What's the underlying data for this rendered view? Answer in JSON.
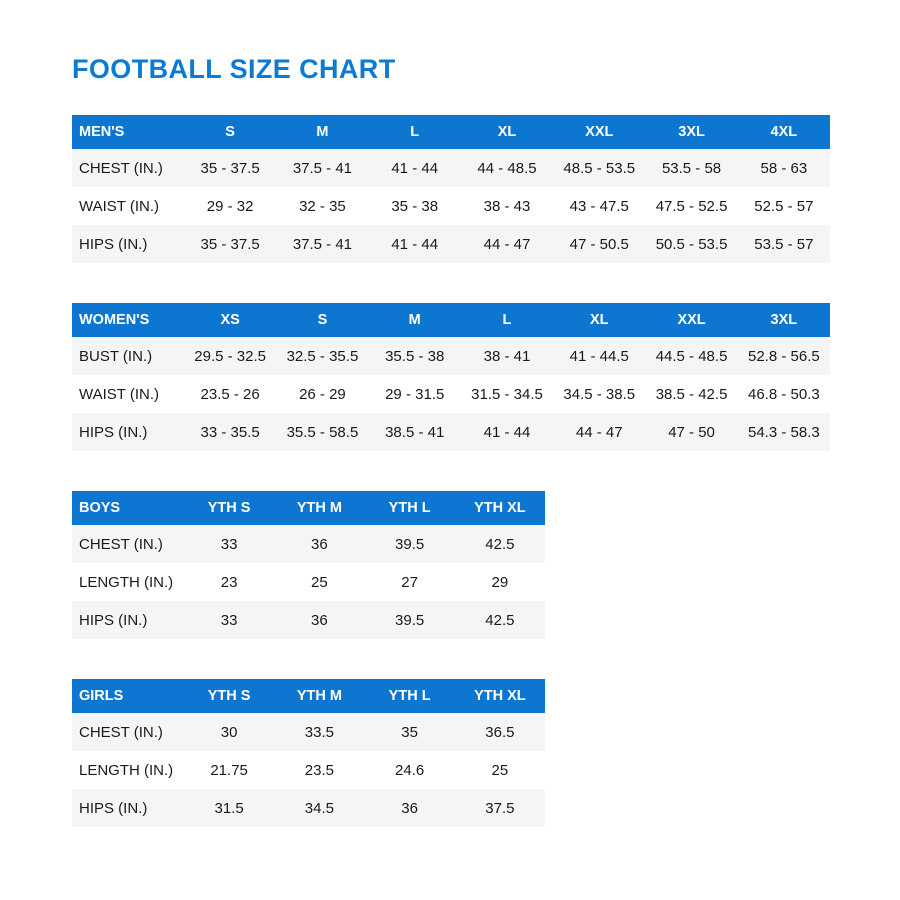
{
  "page": {
    "title": "FOOTBALL SIZE CHART"
  },
  "colors": {
    "header_background": "#0d76d1",
    "title_blue": "#0c7bd3",
    "header_text": "#ffffff",
    "row_stripe": "#f5f5f5",
    "body_text": "#1a1a1a"
  },
  "chart_data": [
    {
      "type": "table",
      "id": "mens",
      "title": "MEN'S",
      "columns": [
        "MEN'S",
        "S",
        "M",
        "L",
        "XL",
        "XXL",
        "3XL",
        "4XL"
      ],
      "rows": [
        [
          "CHEST (IN.)",
          "35 - 37.5",
          "37.5 - 41",
          "41 - 44",
          "44 - 48.5",
          "48.5 - 53.5",
          "53.5 - 58",
          "58 - 63"
        ],
        [
          "WAIST (IN.)",
          "29 - 32",
          "32 - 35",
          "35 - 38",
          "38 - 43",
          "43 - 47.5",
          "47.5 - 52.5",
          "52.5 - 57"
        ],
        [
          "HIPS (IN.)",
          "35 - 37.5",
          "37.5 - 41",
          "41 - 44",
          "44 - 47",
          "47 - 50.5",
          "50.5 - 53.5",
          "53.5 - 57"
        ]
      ]
    },
    {
      "type": "table",
      "id": "womens",
      "title": "WOMEN'S",
      "columns": [
        "WOMEN'S",
        "XS",
        "S",
        "M",
        "L",
        "XL",
        "XXL",
        "3XL"
      ],
      "rows": [
        [
          "BUST (IN.)",
          "29.5 - 32.5",
          "32.5 - 35.5",
          "35.5 - 38",
          "38 - 41",
          "41 - 44.5",
          "44.5 - 48.5",
          "52.8 - 56.5"
        ],
        [
          "WAIST (IN.)",
          "23.5 - 26",
          "26 - 29",
          "29 - 31.5",
          "31.5 - 34.5",
          "34.5 - 38.5",
          "38.5 - 42.5",
          "46.8 - 50.3"
        ],
        [
          "HIPS (IN.)",
          "33 - 35.5",
          "35.5 - 58.5",
          "38.5 - 41",
          "41 - 44",
          "44 - 47",
          "47 - 50",
          "54.3 - 58.3"
        ]
      ]
    },
    {
      "type": "table",
      "id": "boys",
      "title": "BOYS",
      "columns": [
        "BOYS",
        "YTH S",
        "YTH M",
        "YTH L",
        "YTH XL"
      ],
      "rows": [
        [
          "CHEST (IN.)",
          "33",
          "36",
          "39.5",
          "42.5"
        ],
        [
          "LENGTH (IN.)",
          "23",
          "25",
          "27",
          "29"
        ],
        [
          "HIPS (IN.)",
          "33",
          "36",
          "39.5",
          "42.5"
        ]
      ]
    },
    {
      "type": "table",
      "id": "girls",
      "title": "GIRLS",
      "columns": [
        "GIRLS",
        "YTH S",
        "YTH M",
        "YTH L",
        "YTH XL"
      ],
      "rows": [
        [
          "CHEST (IN.)",
          "30",
          "33.5",
          "35",
          "36.5"
        ],
        [
          "LENGTH (IN.)",
          "21.75",
          "23.5",
          "24.6",
          "25"
        ],
        [
          "HIPS (IN.)",
          "31.5",
          "34.5",
          "36",
          "37.5"
        ]
      ]
    }
  ]
}
